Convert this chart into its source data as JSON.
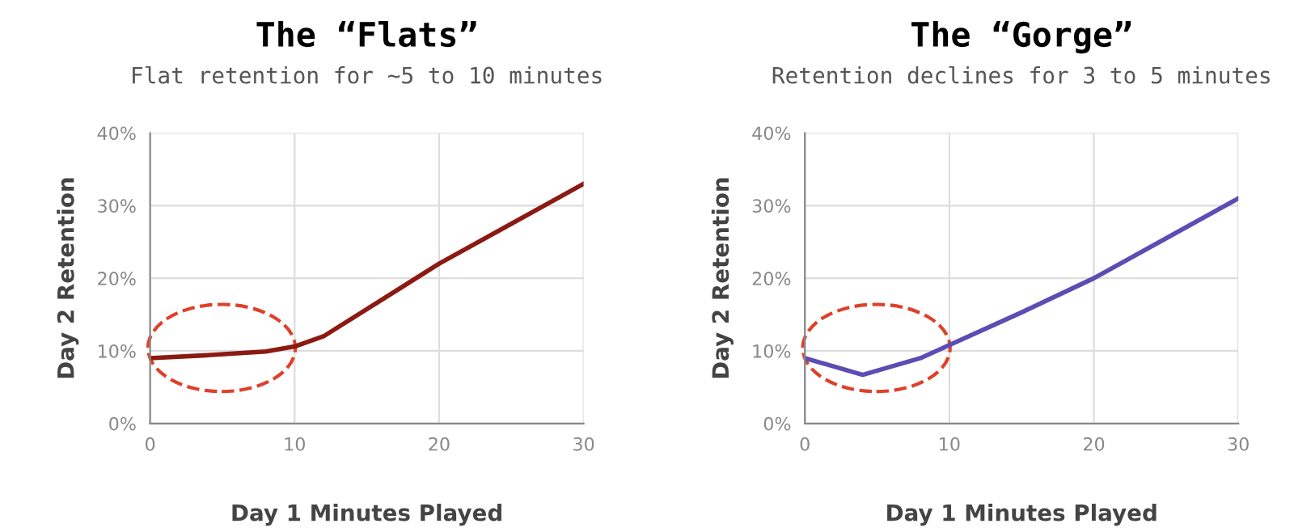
{
  "chart_data": [
    {
      "type": "line",
      "title": "The “Flats”",
      "subtitle": "Flat retention for ~5 to 10 minutes",
      "xlabel": "Day 1 Minutes Played",
      "ylabel": "Day 2 Retention",
      "x": [
        0,
        4,
        8,
        10,
        12,
        16,
        20,
        25,
        30
      ],
      "series": [
        {
          "color": "#8b1a12",
          "values": [
            9,
            9.4,
            9.9,
            10.6,
            12,
            17,
            22,
            27.5,
            33
          ]
        }
      ],
      "xlim": [
        0,
        30
      ],
      "xticks": [
        0,
        10,
        20,
        30
      ],
      "ylim": [
        0,
        40
      ],
      "yticks": [
        {
          "value": 0,
          "label": "0%"
        },
        {
          "value": 10,
          "label": "10%"
        },
        {
          "value": 20,
          "label": "20%"
        },
        {
          "value": 30,
          "label": "30%"
        },
        {
          "value": 40,
          "label": "40%"
        }
      ],
      "grid": true,
      "marker": "none",
      "line_style": "solid"
    },
    {
      "type": "line",
      "title": "The “Gorge”",
      "subtitle": "Retention declines for 3 to 5 minutes",
      "xlabel": "Day 1 Minutes Played",
      "ylabel": "Day 2 Retention",
      "x": [
        0,
        4,
        8,
        10,
        15,
        20,
        25,
        30
      ],
      "series": [
        {
          "color": "#5b4db3",
          "values": [
            9,
            6.7,
            9,
            10.8,
            15.3,
            20,
            25.5,
            31
          ]
        }
      ],
      "xlim": [
        0,
        30
      ],
      "xticks": [
        0,
        10,
        20,
        30
      ],
      "ylim": [
        0,
        40
      ],
      "yticks": [
        {
          "value": 0,
          "label": "0%"
        },
        {
          "value": 10,
          "label": "10%"
        },
        {
          "value": 20,
          "label": "20%"
        },
        {
          "value": 30,
          "label": "30%"
        },
        {
          "value": 40,
          "label": "40%"
        }
      ],
      "grid": true,
      "marker": "none",
      "line_style": "solid"
    }
  ]
}
